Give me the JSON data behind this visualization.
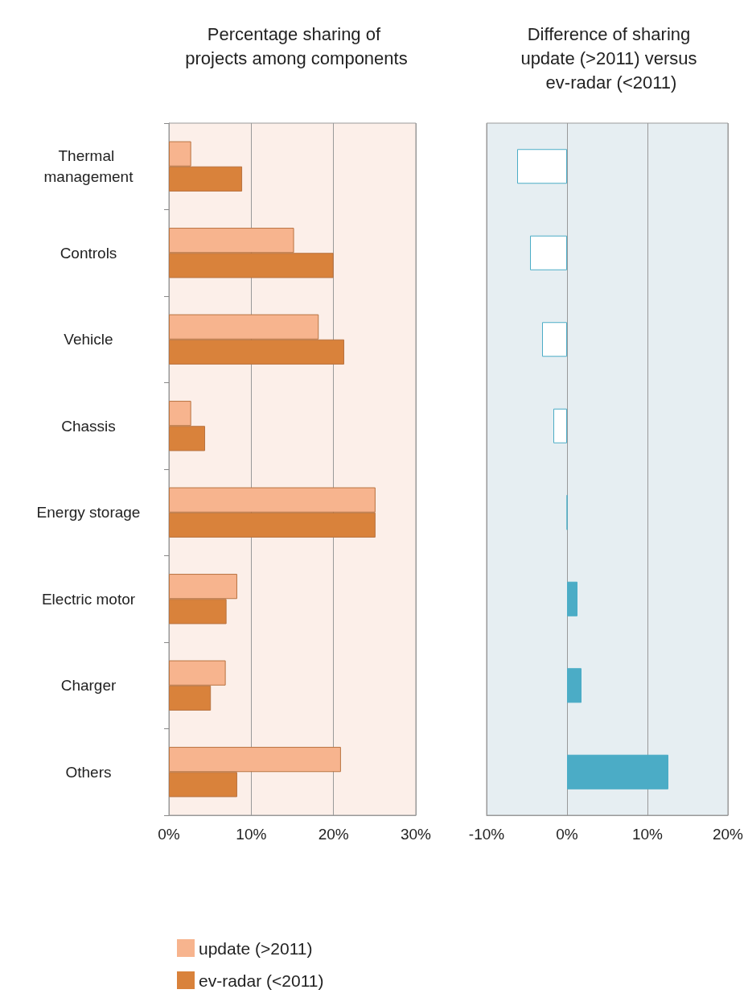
{
  "chart_data": [
    {
      "type": "bar",
      "orientation": "horizontal",
      "title": "Percentage sharing of projects among components",
      "categories": [
        "Thermal management",
        "Controls",
        "Vehicle",
        "Chassis",
        "Energy storage",
        "Electric motor",
        "Charger",
        "Others"
      ],
      "series": [
        {
          "name": "update (>2011)",
          "color": "#f7b48e",
          "values": [
            2.7,
            15.2,
            18.2,
            2.7,
            25.1,
            8.3,
            6.9,
            20.9
          ]
        },
        {
          "name": "ev-radar (<2011)",
          "color": "#d9823b",
          "values": [
            8.9,
            20.0,
            21.3,
            4.4,
            25.1,
            7.0,
            5.1,
            8.3
          ]
        }
      ],
      "xlim": [
        0,
        30
      ],
      "xticks": [
        {
          "value": 0,
          "label": "0%"
        },
        {
          "value": 10,
          "label": "10%"
        },
        {
          "value": 20,
          "label": "20%"
        },
        {
          "value": 30,
          "label": "30%"
        }
      ],
      "grid": "x",
      "legend": "bottom"
    },
    {
      "type": "bar",
      "orientation": "horizontal",
      "title": "Difference of sharing update (>2011) versus ev-radar (<2011)",
      "categories": [
        "Thermal management",
        "Controls",
        "Vehicle",
        "Chassis",
        "Energy storage",
        "Electric motor",
        "Charger",
        "Others"
      ],
      "values": [
        -6.2,
        -4.6,
        -3.1,
        -1.7,
        0,
        1.3,
        1.8,
        12.6
      ],
      "color": "#4bacc6",
      "colors": [
        "#ffffff",
        "#ffffff",
        "#ffffff",
        "#ffffff",
        "#4bacc6",
        "#4bacc6",
        "#4bacc6",
        "#4bacc6"
      ],
      "xlim": [
        -10,
        20
      ],
      "xticks": [
        {
          "value": -10,
          "label": "-10%"
        },
        {
          "value": 0,
          "label": "0%"
        },
        {
          "value": 10,
          "label": "10%"
        },
        {
          "value": 20,
          "label": "20%"
        }
      ],
      "grid": "x",
      "tick_labels": "x"
    }
  ]
}
